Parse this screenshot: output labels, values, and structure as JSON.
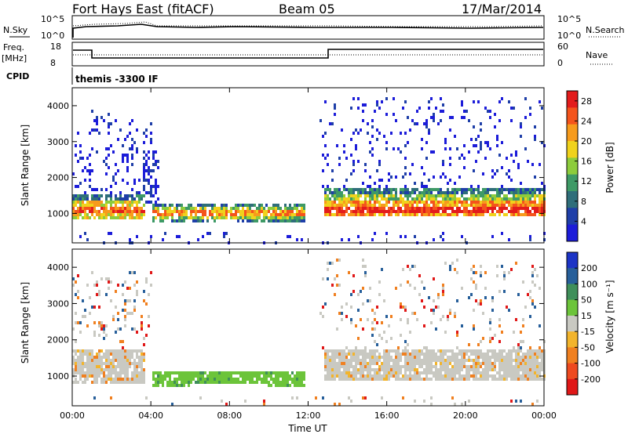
{
  "header": {
    "station": "Fort Hays East (fitACF)",
    "beam": "Beam 05",
    "date": "17/Mar/2014"
  },
  "status_panel": {
    "nsky_label": "N.Sky",
    "nsearch_label": "N.Search",
    "freq_label": "Freq.",
    "freq_unit": "[MHz]",
    "nave_label": "Nave",
    "cpid_label": "CPID",
    "cpid_value": "themis -3300 IF",
    "noise_ticks": [
      "10^5",
      "10^0"
    ],
    "freq_ticks": [
      "18",
      "8"
    ],
    "nave_ticks": [
      "60",
      "0"
    ]
  },
  "colors": {
    "power_scale": [
      "#1c1cd9",
      "#1f3fa8",
      "#2f6e7a",
      "#3e9a66",
      "#8dcc3c",
      "#f0d21c",
      "#f79b1c",
      "#f4541c",
      "#e31c1c"
    ],
    "velocity_scale": [
      "#1c34c6",
      "#275f9a",
      "#3f8f5a",
      "#6cc43a",
      "#c9c9c2",
      "#f2b42c",
      "#f08020",
      "#ee4a20",
      "#e01818"
    ]
  },
  "chart_data": [
    {
      "type": "heatmap",
      "title": "Power",
      "ylabel": "Slant Range [km]",
      "ylim": [
        180,
        4500
      ],
      "xlim": [
        0,
        24
      ],
      "y_ticks": [
        1000,
        2000,
        3000,
        4000
      ],
      "colorbar": {
        "label": "Power [dB]",
        "ticks": [
          4,
          8,
          12,
          16,
          20,
          24,
          28
        ],
        "range": [
          0,
          30
        ]
      },
      "bands": [
        {
          "x": [
            1.0,
            2.2
          ],
          "y": [
            2800,
            3800
          ],
          "sparse": true
        },
        {
          "x": [
            4.0,
            11.8
          ],
          "y": [
            850,
            1300
          ],
          "value_db": 12
        },
        {
          "x": [
            13.0,
            24.0
          ],
          "y": [
            1000,
            1700
          ],
          "value_db": 22
        },
        {
          "x": [
            0.0,
            3.5
          ],
          "y": [
            900,
            1500
          ],
          "value_db": 18
        }
      ]
    },
    {
      "type": "heatmap",
      "title": "Velocity",
      "ylabel": "Slant Range [km]",
      "xlabel": "Time UT",
      "ylim": [
        180,
        4500
      ],
      "xlim": [
        0,
        24
      ],
      "y_ticks": [
        1000,
        2000,
        3000,
        4000
      ],
      "x_ticks": [
        "00:00",
        "04:00",
        "08:00",
        "12:00",
        "16:00",
        "20:00",
        "00:00"
      ],
      "colorbar": {
        "label": "Velocity [m s⁻¹]",
        "ticks": [
          200,
          100,
          50,
          15,
          -15,
          -50,
          -100,
          -200
        ]
      },
      "bands": [
        {
          "x": [
            0.0,
            3.5
          ],
          "y": [
            900,
            1700
          ],
          "velocity": 0
        },
        {
          "x": [
            4.0,
            11.8
          ],
          "y": [
            850,
            1200
          ],
          "velocity": 30
        },
        {
          "x": [
            13.0,
            24.0
          ],
          "y": [
            1000,
            1700
          ],
          "velocity": 0
        }
      ]
    }
  ]
}
